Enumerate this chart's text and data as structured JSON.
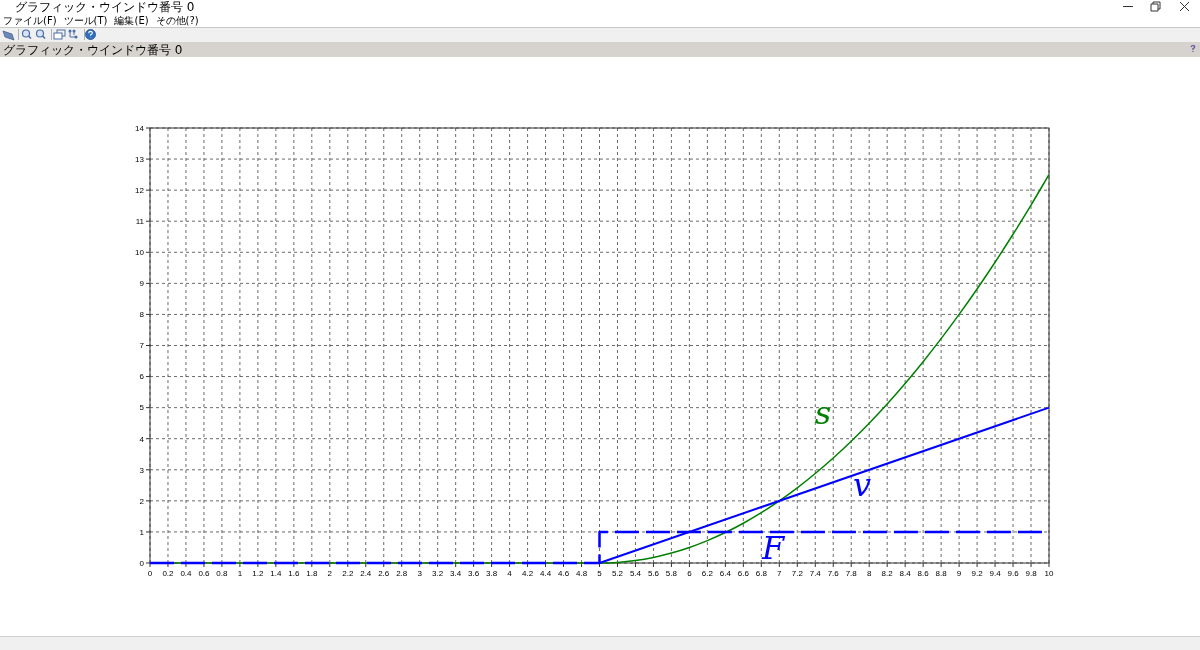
{
  "chart_data": {
    "type": "line",
    "title": "グラフィック・ウインドウ番号 0",
    "annotations": [
      "ファイル(F)",
      "ツール(T)",
      "編集(E)",
      "その他(?)"
    ],
    "xlim": [
      0,
      10
    ],
    "ylim": [
      0,
      14
    ],
    "xticks": [
      0,
      0.2,
      0.4,
      0.6,
      0.8,
      1,
      1.2,
      1.4,
      1.6,
      1.8,
      2,
      2.2,
      2.4,
      2.6,
      2.8,
      3,
      3.2,
      3.4,
      3.6,
      3.8,
      4,
      4.2,
      4.4,
      4.6,
      4.8,
      5,
      5.2,
      5.4,
      5.6,
      5.8,
      6,
      6.2,
      6.4,
      6.6,
      6.8,
      7,
      7.2,
      7.4,
      7.6,
      7.8,
      8,
      8.2,
      8.4,
      8.6,
      8.8,
      9,
      9.2,
      9.4,
      9.6,
      9.8,
      10
    ],
    "yticks": [
      0,
      1,
      2,
      3,
      4,
      5,
      6,
      7,
      8,
      9,
      10,
      11,
      12,
      13,
      14
    ],
    "grid": true,
    "series": [
      {
        "name": "s",
        "color": "#008000",
        "x": [
          0,
          5,
          5.2,
          5.4,
          5.6,
          5.8,
          6,
          6.2,
          6.4,
          6.6,
          6.8,
          7,
          7.2,
          7.4,
          7.6,
          7.8,
          8,
          8.2,
          8.4,
          8.6,
          8.8,
          9,
          9.2,
          9.4,
          9.6,
          9.8,
          10
        ],
        "values": [
          0,
          0,
          0.02,
          0.08,
          0.18,
          0.32,
          0.5,
          0.72,
          0.98,
          1.28,
          1.62,
          2,
          2.42,
          2.88,
          3.38,
          3.92,
          4.5,
          5.12,
          5.78,
          6.48,
          7.22,
          8,
          8.82,
          9.68,
          10.58,
          11.52,
          12.5
        ]
      },
      {
        "name": "v",
        "color": "#0000ff",
        "x": [
          5,
          10
        ],
        "values": [
          0,
          5
        ]
      },
      {
        "name": "F",
        "color": "#0000ff",
        "type": "step",
        "line_style": "dashed",
        "x": [
          0,
          5,
          10
        ],
        "values": [
          0,
          1,
          1
        ]
      }
    ]
  }
}
